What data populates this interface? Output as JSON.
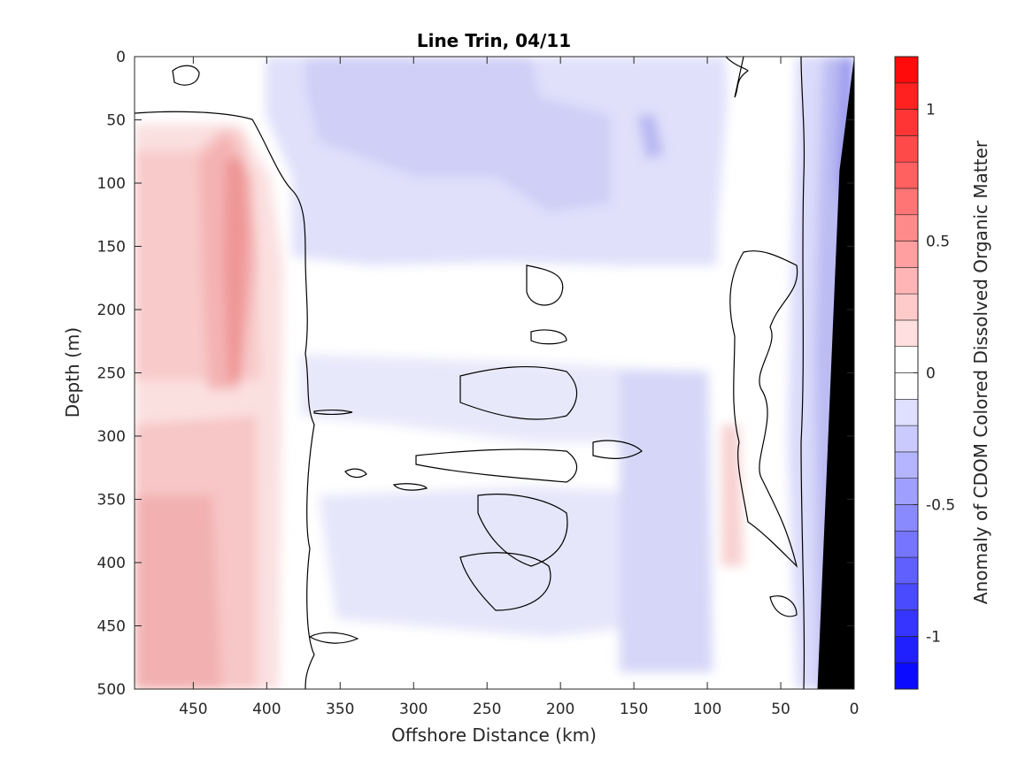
{
  "chart_data": {
    "type": "heatmap",
    "subtype": "filled-contour",
    "title": "Line Trin, 04/11",
    "xlabel": "Offshore Distance (km)",
    "ylabel": "Depth (m)",
    "xlim": [
      490,
      0
    ],
    "x_reversed": true,
    "ylim": [
      0,
      500
    ],
    "y_reversed": true,
    "xticks": [
      450,
      400,
      350,
      300,
      250,
      200,
      150,
      100,
      50,
      0
    ],
    "yticks": [
      0,
      50,
      100,
      150,
      200,
      250,
      300,
      350,
      400,
      450,
      500
    ],
    "colorbar": {
      "label": "Anomaly of CDOM Colored Dissolved Organic Matter",
      "range": [
        -1.2,
        1.2
      ],
      "ticks": [
        -1,
        -0.5,
        0,
        0.5,
        1
      ],
      "tick_labels": [
        "-1",
        "-0.5",
        "0",
        "0.5",
        "1"
      ],
      "levels": 24,
      "colormap": "blue-white-red",
      "low_color": "#0000ff",
      "mid_color": "#ffffff",
      "high_color": "#ff0000"
    },
    "zero_contour_color": "#000000",
    "bathymetry_mask_color": "#000000",
    "bathymetry": {
      "x": [
        0,
        10,
        25
      ],
      "depth": [
        0,
        90,
        500
      ]
    },
    "regions": [
      {
        "name": "positive anomaly core",
        "x_range": [
          490,
          380
        ],
        "depth_range": [
          45,
          500
        ],
        "peak_value": 0.55,
        "peak_x": 420,
        "peak_depth": 150
      },
      {
        "name": "negative anomaly upper-offshore",
        "x_range": [
          380,
          100
        ],
        "depth_range": [
          0,
          160
        ],
        "value": -0.22
      },
      {
        "name": "near-zero band",
        "x_range": [
          100,
          50
        ],
        "depth_range": [
          0,
          500
        ],
        "value": 0.03
      },
      {
        "name": "negative anomaly near coast",
        "x_range": [
          40,
          0
        ],
        "depth_range": [
          0,
          500
        ],
        "value": -0.35
      }
    ]
  }
}
